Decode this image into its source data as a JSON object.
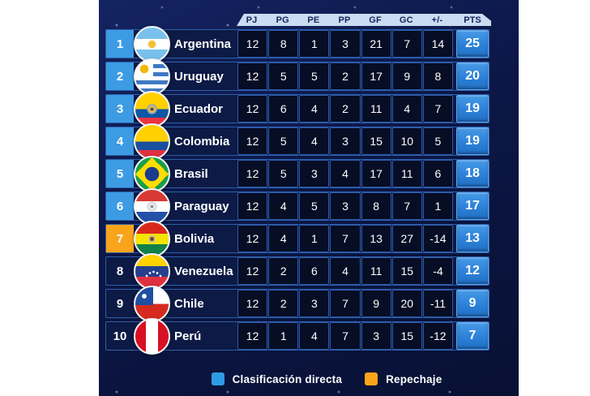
{
  "table": {
    "columns": [
      "PJ",
      "PG",
      "PE",
      "PP",
      "GF",
      "GC",
      "+/-",
      "PTS"
    ],
    "teams": [
      {
        "rank": "1",
        "name": "Argentina",
        "flag": "argentina-flag",
        "zone": "direct",
        "stats": [
          "12",
          "8",
          "1",
          "3",
          "21",
          "7",
          "14"
        ],
        "pts": "25"
      },
      {
        "rank": "2",
        "name": "Uruguay",
        "flag": "uruguay-flag",
        "zone": "direct",
        "stats": [
          "12",
          "5",
          "5",
          "2",
          "17",
          "9",
          "8"
        ],
        "pts": "20"
      },
      {
        "rank": "3",
        "name": "Ecuador",
        "flag": "ecuador-flag",
        "zone": "direct",
        "stats": [
          "12",
          "6",
          "4",
          "2",
          "11",
          "4",
          "7"
        ],
        "pts": "19"
      },
      {
        "rank": "4",
        "name": "Colombia",
        "flag": "colombia-flag",
        "zone": "direct",
        "stats": [
          "12",
          "5",
          "4",
          "3",
          "15",
          "10",
          "5"
        ],
        "pts": "19"
      },
      {
        "rank": "5",
        "name": "Brasil",
        "flag": "brasil-flag",
        "zone": "direct",
        "stats": [
          "12",
          "5",
          "3",
          "4",
          "17",
          "11",
          "6"
        ],
        "pts": "18"
      },
      {
        "rank": "6",
        "name": "Paraguay",
        "flag": "paraguay-flag",
        "zone": "direct",
        "stats": [
          "12",
          "4",
          "5",
          "3",
          "8",
          "7",
          "1"
        ],
        "pts": "17"
      },
      {
        "rank": "7",
        "name": "Bolivia",
        "flag": "bolivia-flag",
        "zone": "playoff",
        "stats": [
          "12",
          "4",
          "1",
          "7",
          "13",
          "27",
          "-14"
        ],
        "pts": "13"
      },
      {
        "rank": "8",
        "name": "Venezuela",
        "flag": "venezuela-flag",
        "zone": "none",
        "stats": [
          "12",
          "2",
          "6",
          "4",
          "11",
          "15",
          "-4"
        ],
        "pts": "12"
      },
      {
        "rank": "9",
        "name": "Chile",
        "flag": "chile-flag",
        "zone": "none",
        "stats": [
          "12",
          "2",
          "3",
          "7",
          "9",
          "20",
          "-11"
        ],
        "pts": "9"
      },
      {
        "rank": "10",
        "name": "Perú",
        "flag": "peru-flag",
        "zone": "none",
        "stats": [
          "12",
          "1",
          "4",
          "7",
          "3",
          "15",
          "-12"
        ],
        "pts": "7"
      }
    ]
  },
  "legend": {
    "items": [
      {
        "key": "direct",
        "label": "Clasificación directa",
        "color": "#2e9be5"
      },
      {
        "key": "playoff",
        "label": "Repechaje",
        "color": "#f9a41b"
      }
    ]
  },
  "colors": {
    "panel_background": "#0c1747",
    "row_background": "#0c1a45",
    "stat_cell_background": "#060d24",
    "direct_rank": "#3d9be4",
    "playoff_rank": "#f9a41b",
    "pts_cell": "#2a7fd6",
    "header_background": "#cadcf1",
    "header_text": "#16235b"
  }
}
